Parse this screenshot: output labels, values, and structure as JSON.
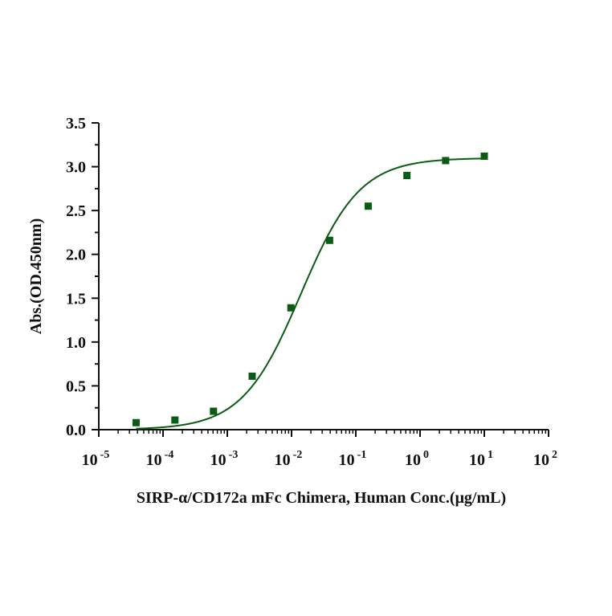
{
  "chart_data": {
    "type": "scatter",
    "title": "",
    "xlabel": "SIRP-α/CD172a mFc Chimera, Human  Conc.(μg/mL)",
    "ylabel": "Abs.(OD.450nm)",
    "x_scale": "log",
    "xlim": [
      1e-05,
      100
    ],
    "ylim": [
      0,
      3.5
    ],
    "x_ticks": [
      {
        "base": "10",
        "exp": "-5"
      },
      {
        "base": "10",
        "exp": "-4"
      },
      {
        "base": "10",
        "exp": "-3"
      },
      {
        "base": "10",
        "exp": "-2"
      },
      {
        "base": "10",
        "exp": "-1"
      },
      {
        "base": "10",
        "exp": "0"
      },
      {
        "base": "10",
        "exp": "1"
      },
      {
        "base": "10",
        "exp": "2"
      }
    ],
    "y_ticks": [
      "0.0",
      "0.5",
      "1.0",
      "1.5",
      "2.0",
      "2.5",
      "3.0",
      "3.5"
    ],
    "grid": false,
    "series": [
      {
        "points": [
          {
            "x": 3.81e-05,
            "y": 0.08
          },
          {
            "x": 0.000153,
            "y": 0.11
          },
          {
            "x": 0.00061,
            "y": 0.21
          },
          {
            "x": 0.00244,
            "y": 0.61
          },
          {
            "x": 0.00977,
            "y": 1.39
          },
          {
            "x": 0.0391,
            "y": 2.16
          },
          {
            "x": 0.156,
            "y": 2.55
          },
          {
            "x": 0.625,
            "y": 2.9
          },
          {
            "x": 2.5,
            "y": 3.07
          },
          {
            "x": 10,
            "y": 3.12
          }
        ],
        "fit": "4PL sigmoid",
        "color": "#0a5c14"
      }
    ]
  }
}
